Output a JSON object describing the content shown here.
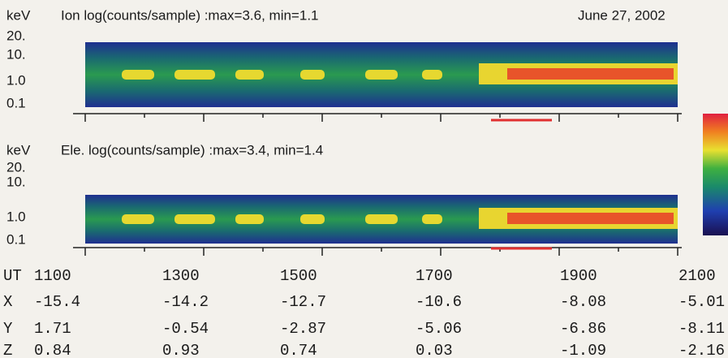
{
  "header": {
    "date": "June 27, 2002"
  },
  "panels": [
    {
      "unit": "keV",
      "title": "Ion log(counts/sample) :max=3.6, min=1.1",
      "yticks": [
        "20.",
        "10.",
        "1.0",
        "0.1"
      ]
    },
    {
      "unit": "keV",
      "title": "Ele. log(counts/sample) :max=3.4, min=1.4",
      "yticks": [
        "20.",
        "10.",
        "1.0",
        "0.1"
      ]
    }
  ],
  "table": {
    "rows": [
      [
        "UT",
        "1100",
        "1300",
        "1500",
        "1700",
        "1900",
        "2100"
      ],
      [
        "X",
        "-15.4",
        "-14.2",
        "-12.7",
        "-10.6",
        "-8.08",
        "-5.01"
      ],
      [
        "Y",
        "1.71",
        "-0.54",
        "-2.87",
        "-5.06",
        "-6.86",
        "-8.11"
      ],
      [
        "Z",
        "0.84",
        "0.93",
        "0.74",
        "0.03",
        "-1.09",
        "-2.16"
      ]
    ]
  }
}
